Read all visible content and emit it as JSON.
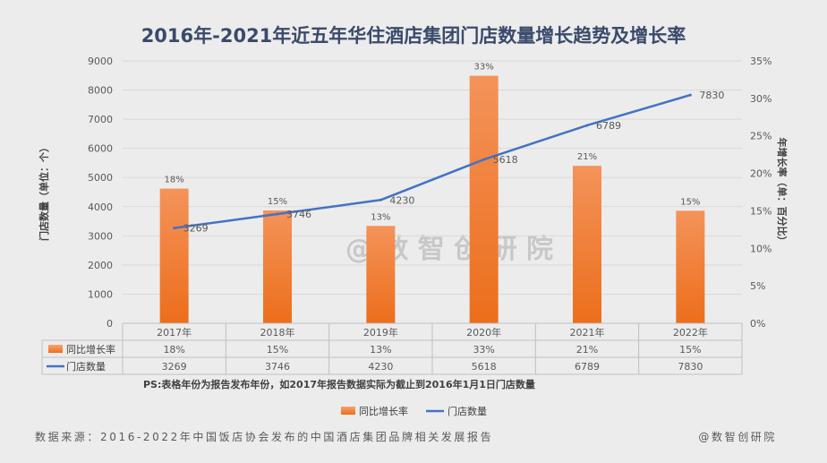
{
  "chart_data": {
    "type": "bar",
    "title": "2016年-2021年近五年华住酒店集团门店数量增长趋势及增长率",
    "categories": [
      "2017年",
      "2018年",
      "2019年",
      "2020年",
      "2021年",
      "2022年"
    ],
    "series": [
      {
        "name": "同比增长率",
        "kind": "bar",
        "axis": "left",
        "values": [
          4620,
          3870,
          3340,
          8490,
          5400,
          3860
        ],
        "labels": [
          "18%",
          "15%",
          "13%",
          "33%",
          "21%",
          "15%"
        ],
        "color": "#ee7d2a"
      },
      {
        "name": "门店数量",
        "kind": "line",
        "axis": "left",
        "values": [
          3269,
          3746,
          4230,
          5618,
          6789,
          7830
        ],
        "labels": [
          "3269",
          "3746",
          "4230",
          "5618",
          "6789",
          "7830"
        ],
        "color": "#4472c4"
      }
    ],
    "y_left": {
      "label": "门店数量（单位：个）",
      "range": [
        0,
        9000
      ],
      "ticks": [
        "0",
        "1000",
        "2000",
        "3000",
        "4000",
        "5000",
        "6000",
        "7000",
        "8000",
        "9000"
      ]
    },
    "y_right": {
      "label": "年增长率（单：百分比）",
      "range": [
        0,
        35
      ],
      "ticks": [
        "0%",
        "5%",
        "10%",
        "15%",
        "20%",
        "25%",
        "30%",
        "35%"
      ]
    },
    "data_table": {
      "rows": [
        {
          "name": "同比增长率",
          "values": [
            "18%",
            "15%",
            "13%",
            "33%",
            "21%",
            "15%"
          ]
        },
        {
          "name": "门店数量",
          "values": [
            "3269",
            "3746",
            "4230",
            "5618",
            "6789",
            "7830"
          ]
        }
      ]
    },
    "note": "PS:表格年份为报告发布年份，如2017年报告数据实际为截止到2016年1月1日门店数量",
    "legend": [
      "同比增长率",
      "门店数量"
    ],
    "legend_position": "bottom",
    "grid": true,
    "watermark": "@ 数 智 创 研 院"
  },
  "footer": {
    "source": "数据来源：2016-2022年中国饭店协会发布的中国酒店集团品牌相关发展报告",
    "brand": "@数智创研院"
  }
}
